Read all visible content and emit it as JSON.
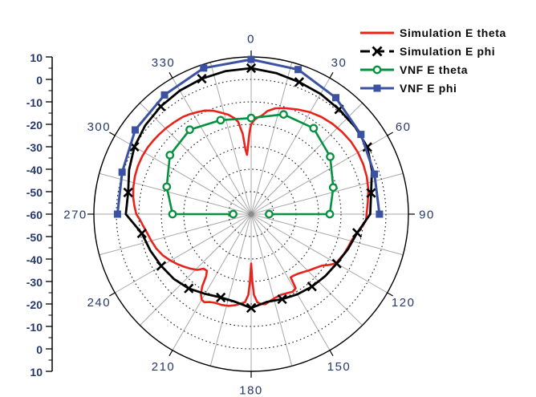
{
  "chart_data": {
    "type": "polar-line",
    "title": "",
    "angular_unit": "degrees",
    "angular_labels": [
      "0",
      "30",
      "60",
      "90",
      "120",
      "150",
      "180",
      "210",
      "240",
      "270",
      "300",
      "330"
    ],
    "radial_axis": {
      "min": -60,
      "max": 10,
      "major_step": 10,
      "minor_step": 5,
      "center_value": -60,
      "outer_value": 10,
      "tick_labels_top_to_bottom": [
        "10",
        "0",
        "-10",
        "-20",
        "-30",
        "-40",
        "-50",
        "-60",
        "-50",
        "-40",
        "-30",
        "-20",
        "-10",
        "0",
        "10"
      ]
    },
    "grid": {
      "rings_db": [
        0,
        -10,
        -20,
        -30,
        -40,
        -50
      ],
      "spoke_step_deg": 15,
      "labeled_spoke_step_deg": 30,
      "ring_style": "dotted"
    },
    "colors": {
      "grid_spoke": "#a8a8a8",
      "grid_ring": "#1a1a1a",
      "axis_text": "#27386b",
      "outer_circle": "#000000"
    },
    "series": [
      {
        "name": "Simulation E theta",
        "color": "#e8231c",
        "line": "solid",
        "marker": "none",
        "closed": true,
        "points": [
          [
            0,
            -20
          ],
          [
            2,
            -18
          ],
          [
            4,
            -16.8
          ],
          [
            6,
            -16
          ],
          [
            9,
            -13.5
          ],
          [
            13,
            -11.6
          ],
          [
            18,
            -10.4
          ],
          [
            24,
            -9
          ],
          [
            30,
            -7.6
          ],
          [
            36,
            -6.6
          ],
          [
            42,
            -5.9
          ],
          [
            48,
            -5.4
          ],
          [
            54,
            -5.1
          ],
          [
            60,
            -5.1
          ],
          [
            66,
            -5.4
          ],
          [
            72,
            -5.9
          ],
          [
            78,
            -6.7
          ],
          [
            84,
            -7.8
          ],
          [
            90,
            -8.6
          ],
          [
            93,
            -8.8
          ],
          [
            96,
            -10
          ],
          [
            100,
            -12.2
          ],
          [
            104,
            -13.6
          ],
          [
            108,
            -14.3
          ],
          [
            113,
            -15
          ],
          [
            117,
            -15.9
          ],
          [
            120,
            -16.3
          ],
          [
            123,
            -18.5
          ],
          [
            126,
            -21
          ],
          [
            130,
            -22.7
          ],
          [
            134,
            -24
          ],
          [
            138,
            -25.3
          ],
          [
            142,
            -26.3
          ],
          [
            146,
            -26.8
          ],
          [
            148,
            -26.8
          ],
          [
            149,
            -21.5
          ],
          [
            152,
            -20.8
          ],
          [
            156,
            -21.4
          ],
          [
            160,
            -21.7
          ],
          [
            164,
            -21.2
          ],
          [
            168,
            -20.4
          ],
          [
            171,
            -19.4
          ],
          [
            174,
            -19.8
          ],
          [
            176,
            -20.7
          ],
          [
            178,
            -24
          ],
          [
            179,
            -30
          ],
          [
            180,
            -38
          ],
          [
            181,
            -30
          ],
          [
            182,
            -24
          ],
          [
            184,
            -20.7
          ],
          [
            187,
            -19.8
          ],
          [
            190,
            -18.8
          ],
          [
            194,
            -17.9
          ],
          [
            198,
            -17.5
          ],
          [
            202,
            -17.4
          ],
          [
            205,
            -16.8
          ],
          [
            208,
            -15.6
          ],
          [
            210,
            -16
          ],
          [
            212,
            -17.8
          ],
          [
            214,
            -21
          ],
          [
            216,
            -26
          ],
          [
            218,
            -28
          ],
          [
            221,
            -27.8
          ],
          [
            224,
            -25.5
          ],
          [
            228,
            -23.7
          ],
          [
            232,
            -22
          ],
          [
            236,
            -20.3
          ],
          [
            240,
            -18.6
          ],
          [
            245,
            -16.6
          ],
          [
            250,
            -15.1
          ],
          [
            255,
            -14
          ],
          [
            260,
            -12.9
          ],
          [
            264,
            -11.6
          ],
          [
            267,
            -10.5
          ],
          [
            270,
            -8.9
          ],
          [
            274,
            -7.9
          ],
          [
            278,
            -7
          ],
          [
            283,
            -6.2
          ],
          [
            288,
            -5.6
          ],
          [
            293,
            -5.2
          ],
          [
            298,
            -5.1
          ],
          [
            303,
            -5.2
          ],
          [
            307,
            -5.5
          ],
          [
            311,
            -5.8
          ],
          [
            315,
            -6.1
          ],
          [
            320,
            -6.6
          ],
          [
            325,
            -7.1
          ],
          [
            328,
            -7.7
          ],
          [
            332,
            -8.6
          ],
          [
            336,
            -9.5
          ],
          [
            340,
            -11
          ],
          [
            343,
            -12.6
          ],
          [
            347,
            -14.5
          ],
          [
            350,
            -16.5
          ],
          [
            352,
            -18.5
          ],
          [
            354,
            -24
          ],
          [
            355,
            -31
          ],
          [
            356,
            -33.5
          ],
          [
            357,
            -31
          ],
          [
            358,
            -27
          ],
          [
            359,
            -23
          ]
        ]
      },
      {
        "name": "Simulation E phi",
        "color": "#000000",
        "line": "solid",
        "marker": "x",
        "marker_step_deg": 20,
        "closed": true,
        "points": [
          [
            0,
            5
          ],
          [
            10,
            3.8
          ],
          [
            20,
            2.6
          ],
          [
            30,
            1.8
          ],
          [
            40,
            0.9
          ],
          [
            50,
            0.4
          ],
          [
            60,
            -0.3
          ],
          [
            70,
            -2.8
          ],
          [
            80,
            -5.8
          ],
          [
            90,
            -7
          ],
          [
            100,
            -12.1
          ],
          [
            110,
            -14.2
          ],
          [
            120,
            -16
          ],
          [
            130,
            -17
          ],
          [
            140,
            -17.9
          ],
          [
            150,
            -18.8
          ],
          [
            160,
            -19.7
          ],
          [
            170,
            -20.3
          ],
          [
            180,
            -18.2
          ],
          [
            190,
            -20.3
          ],
          [
            200,
            -20.5
          ],
          [
            210,
            -19
          ],
          [
            220,
            -16.8
          ],
          [
            230,
            -15.1
          ],
          [
            240,
            -13.8
          ],
          [
            250,
            -12.3
          ],
          [
            260,
            -10.6
          ],
          [
            270,
            -4.2
          ],
          [
            280,
            -4.4
          ],
          [
            290,
            -2.2
          ],
          [
            300,
            0
          ],
          [
            310,
            1.5
          ],
          [
            320,
            2.6
          ],
          [
            330,
            3.5
          ],
          [
            340,
            4.2
          ],
          [
            350,
            4.7
          ]
        ]
      },
      {
        "name": "VNF E theta",
        "color": "#05913f",
        "line": "solid",
        "marker": "open-circle",
        "closed": false,
        "points": [
          [
            270,
            -52
          ],
          [
            270,
            -25
          ],
          [
            288,
            -20.5
          ],
          [
            306,
            -15.3
          ],
          [
            324,
            -13.5
          ],
          [
            342,
            -16
          ],
          [
            360,
            -17.2
          ],
          [
            378,
            -13.3
          ],
          [
            396,
            -12.7
          ],
          [
            414,
            -16.5
          ],
          [
            432,
            -21.6
          ],
          [
            450,
            -25
          ],
          [
            450,
            -52
          ]
        ]
      },
      {
        "name": "VNF E phi",
        "color": "#3b52a3",
        "line": "solid",
        "marker": "filled-square",
        "closed": false,
        "points": [
          [
            270,
            -0.5
          ],
          [
            288,
            0.4
          ],
          [
            306,
            3.8
          ],
          [
            324,
            5.6
          ],
          [
            342,
            8.4
          ],
          [
            360,
            8.9
          ],
          [
            378,
            7.7
          ],
          [
            396,
            4.1
          ],
          [
            414,
            0.4
          ],
          [
            432,
            -2.3
          ],
          [
            450,
            -2.9
          ]
        ]
      }
    ],
    "legend": {
      "position": "top-right",
      "items": [
        {
          "label": "Simulation E theta",
          "swatch": "red-line"
        },
        {
          "label": "Simulation E phi",
          "swatch": "black-line-x"
        },
        {
          "label": "VNF E theta",
          "swatch": "green-line-circle"
        },
        {
          "label": "VNF E phi",
          "swatch": "blue-line-square"
        }
      ]
    }
  }
}
